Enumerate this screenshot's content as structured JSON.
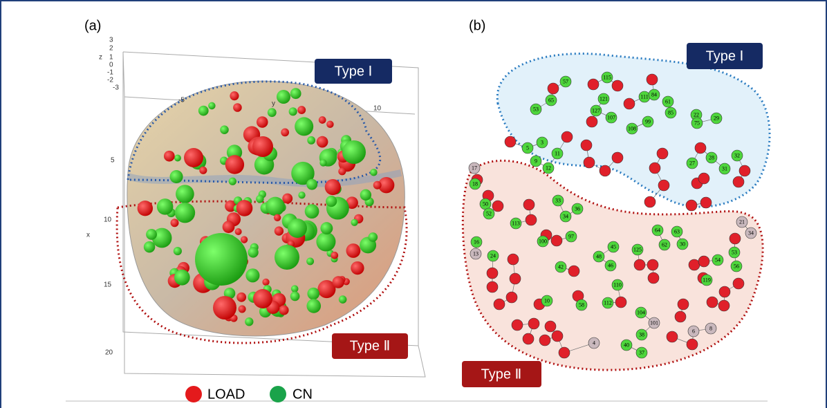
{
  "panel_a": {
    "label": "(a)",
    "type_1": "Type Ⅰ",
    "type_2": "Type Ⅱ",
    "ticks": [
      "3",
      "2",
      "z",
      "1",
      "0",
      "-1",
      "-2",
      "-3",
      "-5",
      "y",
      "10",
      "5",
      "10",
      "x",
      "15",
      "20"
    ],
    "legend": [
      "LOAD",
      "CN"
    ]
  },
  "panel_b": {
    "label": "(b)",
    "type_1": "Type Ⅰ",
    "type_2": "Type Ⅱ",
    "nodes": [
      "57",
      "53",
      "65",
      "115",
      "121",
      "127",
      "107",
      "108",
      "99",
      "111",
      "84",
      "61",
      "85",
      "22",
      "29",
      "75",
      "5",
      "3",
      "11",
      "9",
      "12",
      "27",
      "28",
      "32",
      "31",
      "17",
      "18",
      "50",
      "52",
      "113",
      "33",
      "36",
      "34",
      "97",
      "100",
      "16",
      "13",
      "24",
      "42",
      "45",
      "48",
      "46",
      "125",
      "64",
      "63",
      "62",
      "30",
      "54",
      "53",
      "56",
      "119",
      "110",
      "112",
      "104",
      "38",
      "40",
      "37",
      "101",
      "6",
      "8",
      "4",
      "21",
      "34",
      "58",
      "10"
    ]
  }
}
